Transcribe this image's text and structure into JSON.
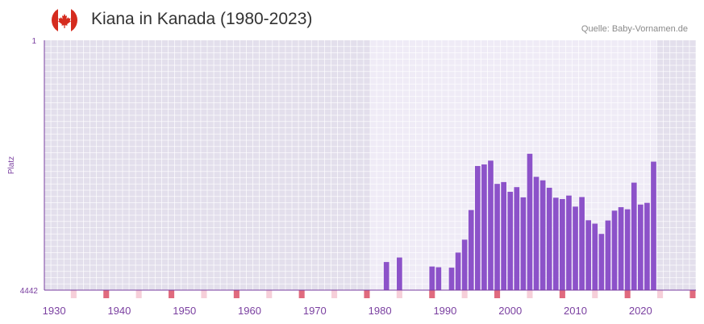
{
  "header": {
    "title": "Kiana in Kanada (1980-2023)",
    "source": "Quelle: Baby-Vornamen.de"
  },
  "colors": {
    "bar": "#8c52c9",
    "axis_text": "#7a3fa0",
    "marker_strong": "#e06a7e",
    "marker_light": "#f6cfd9",
    "bg_outer": "#e3dfec",
    "bg_inner": "#efebf6"
  },
  "chart_data": {
    "type": "bar",
    "title": "Kiana in Kanada (1980-2023)",
    "xlabel": "",
    "ylabel": "Platz",
    "y_inverted": true,
    "ylim": [
      1,
      4442
    ],
    "y_ticks": [
      "1",
      "4442"
    ],
    "xlim": [
      1929,
      2028
    ],
    "x_ticks": [
      1930,
      1940,
      1950,
      1960,
      1970,
      1980,
      1990,
      2000,
      2010,
      2020
    ],
    "highlight_range": [
      1979,
      2022
    ],
    "series": [
      {
        "name": "Platz",
        "x": [
          1981,
          1983,
          1988,
          1989,
          1991,
          1992,
          1993,
          1994,
          1995,
          1996,
          1997,
          1998,
          1999,
          2000,
          2001,
          2002,
          2003,
          2004,
          2005,
          2006,
          2007,
          2008,
          2009,
          2010,
          2011,
          2012,
          2013,
          2014,
          2015,
          2016,
          2017,
          2018,
          2019,
          2020,
          2021,
          2022
        ],
        "values": [
          3942,
          3862,
          4022,
          4035,
          4042,
          3774,
          3545,
          3018,
          2235,
          2208,
          2140,
          2553,
          2521,
          2694,
          2611,
          2792,
          2018,
          2428,
          2490,
          2622,
          2799,
          2823,
          2761,
          2957,
          2787,
          3200,
          3260,
          3442,
          3204,
          3029,
          2967,
          3004,
          2531,
          2921,
          2890,
          2158
        ]
      }
    ]
  }
}
